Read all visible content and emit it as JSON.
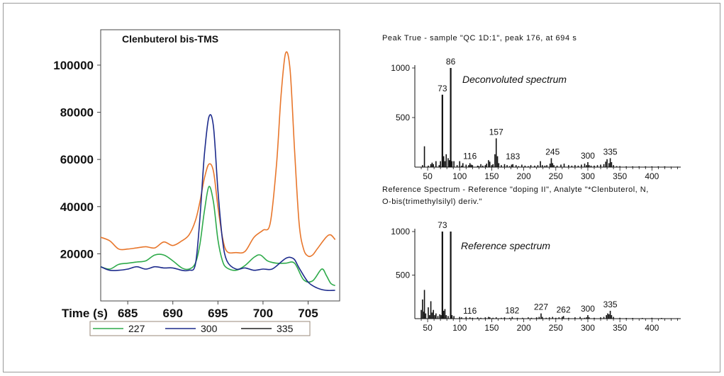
{
  "chart_data": [
    {
      "type": "line",
      "title": "Clenbuterol bis-TMS",
      "xlabel": "Time (s)",
      "ylabel": "",
      "xlim": [
        682,
        708.5
      ],
      "ylim": [
        0,
        115000
      ],
      "x_ticks": [
        685,
        690,
        695,
        700,
        705
      ],
      "y_ticks": [
        20000,
        40000,
        60000,
        80000,
        100000
      ],
      "x_tick_labels": [
        "685",
        "690",
        "695",
        "700",
        "705"
      ],
      "y_tick_labels": [
        "20000",
        "40000",
        "60000",
        "80000",
        "100000"
      ],
      "legend_position": "bottom",
      "series": [
        {
          "name": "227",
          "color": "#2eaa4a",
          "x": [
            682,
            683,
            684,
            685,
            686,
            687,
            688,
            689,
            690,
            691,
            691.8,
            692.5,
            693,
            693.5,
            694,
            694.5,
            695,
            695.5,
            696,
            697,
            698,
            699,
            699.7,
            700.5,
            701.5,
            702.5,
            703.5,
            704.5,
            705.5,
            706.5,
            707,
            707.5,
            708
          ],
          "y": [
            14500,
            13500,
            15500,
            16000,
            16500,
            17000,
            19500,
            19500,
            17000,
            14000,
            13500,
            16000,
            24000,
            38000,
            48500,
            42000,
            26000,
            17000,
            14000,
            13000,
            15000,
            18500,
            19500,
            17000,
            16000,
            16000,
            16000,
            9000,
            8500,
            13500,
            11000,
            7500,
            6500
          ]
        },
        {
          "name": "300",
          "color": "#1d2b8c",
          "x": [
            682,
            683,
            684,
            685,
            686,
            687,
            688,
            689,
            690,
            691,
            691.8,
            692.5,
            693,
            693.5,
            694,
            694.5,
            695,
            695.5,
            696,
            697,
            698,
            699,
            700,
            701,
            702,
            702.5,
            703,
            703.5,
            704,
            705,
            706,
            707,
            708
          ],
          "y": [
            14500,
            13000,
            13000,
            13500,
            14500,
            13500,
            14500,
            14000,
            14000,
            13000,
            13000,
            15500,
            35000,
            62000,
            78000,
            74000,
            47000,
            26000,
            17000,
            13500,
            14000,
            13000,
            13500,
            13500,
            16500,
            18000,
            18500,
            17500,
            14000,
            8000,
            5500,
            4500,
            4500
          ]
        },
        {
          "name": "335",
          "color": "#e8762b",
          "x": [
            682,
            683,
            684,
            685,
            686,
            687,
            688,
            689,
            690,
            691,
            691.8,
            692.5,
            693,
            693.5,
            694,
            694.5,
            695,
            695.5,
            696,
            697,
            698,
            699,
            700,
            700.8,
            701.5,
            702,
            702.5,
            703,
            703.5,
            704,
            704.5,
            705,
            705.5,
            706,
            707,
            707.5,
            708
          ],
          "y": [
            27000,
            25500,
            22000,
            22000,
            22500,
            23000,
            22500,
            25000,
            23500,
            25500,
            28000,
            34000,
            42000,
            52000,
            58000,
            55000,
            40000,
            27000,
            21000,
            20500,
            21000,
            27000,
            30000,
            33000,
            58000,
            87000,
            105000,
            98000,
            64000,
            33000,
            22000,
            19000,
            19500,
            22000,
            27000,
            28000,
            26000
          ]
        }
      ]
    },
    {
      "type": "bar",
      "title": "Deconvoluted spectrum",
      "caption": "Peak True - sample \"QC 1D:1\", peak 176, at 694 s",
      "xlim": [
        30,
        445
      ],
      "ylim": [
        0,
        1000
      ],
      "x_ticks": [
        50,
        100,
        150,
        200,
        250,
        300,
        350,
        400
      ],
      "x_tick_labels": [
        "50",
        "100",
        "150",
        "200",
        "250",
        "300",
        "350",
        "400"
      ],
      "y_ticks": [
        500,
        1000
      ],
      "y_tick_labels": [
        "500",
        "1000"
      ],
      "color": "#111111",
      "x": [
        42,
        45,
        51,
        55,
        57,
        59,
        63,
        68,
        70,
        73,
        75,
        77,
        79,
        82,
        84,
        86,
        88,
        91,
        96,
        100,
        103,
        105,
        110,
        114,
        116,
        118,
        120,
        128,
        130,
        133,
        136,
        140,
        142,
        145,
        147,
        150,
        152,
        155,
        157,
        159,
        161,
        165,
        170,
        174,
        178,
        181,
        183,
        188,
        192,
        197,
        202,
        207,
        211,
        217,
        222,
        226,
        229,
        233,
        236,
        241,
        243,
        245,
        247,
        252,
        258,
        263,
        270,
        275,
        280,
        285,
        290,
        295,
        298,
        300,
        302,
        305,
        310,
        315,
        320,
        325,
        328,
        330,
        333,
        335,
        337,
        340,
        345,
        350,
        360,
        370,
        380,
        390,
        400,
        410,
        420,
        430,
        440
      ],
      "y": [
        20,
        210,
        15,
        30,
        45,
        30,
        60,
        20,
        60,
        730,
        110,
        60,
        130,
        90,
        70,
        1000,
        60,
        60,
        20,
        60,
        15,
        40,
        25,
        20,
        40,
        25,
        20,
        15,
        10,
        30,
        15,
        20,
        35,
        70,
        55,
        20,
        30,
        130,
        290,
        110,
        40,
        20,
        30,
        20,
        10,
        25,
        30,
        20,
        10,
        25,
        15,
        10,
        20,
        15,
        20,
        60,
        20,
        15,
        20,
        35,
        90,
        40,
        20,
        15,
        25,
        35,
        20,
        15,
        20,
        15,
        25,
        35,
        20,
        50,
        20,
        15,
        15,
        20,
        25,
        30,
        55,
        80,
        40,
        90,
        50,
        20,
        10,
        10,
        8,
        8,
        8,
        8,
        8,
        8,
        8,
        5,
        5
      ],
      "peak_labels": [
        {
          "x": 73,
          "y": 730,
          "text": "73"
        },
        {
          "x": 86,
          "y": 1000,
          "text": "86"
        },
        {
          "x": 116,
          "y": 40,
          "text": "116"
        },
        {
          "x": 157,
          "y": 290,
          "text": "157"
        },
        {
          "x": 183,
          "y": 30,
          "text": "183"
        },
        {
          "x": 245,
          "y": 90,
          "text": "245"
        },
        {
          "x": 300,
          "y": 50,
          "text": "300"
        },
        {
          "x": 335,
          "y": 90,
          "text": "335"
        }
      ]
    },
    {
      "type": "bar",
      "title": "Reference spectrum",
      "caption_lines": [
        "Reference Spectrum - Reference \"doping II\", Analyte \"*Clenbuterol, N,",
        "O-bis(trimethylsilyl) deriv.\""
      ],
      "xlim": [
        30,
        445
      ],
      "ylim": [
        0,
        1000
      ],
      "x_ticks": [
        50,
        100,
        150,
        200,
        250,
        300,
        350,
        400
      ],
      "x_tick_labels": [
        "50",
        "100",
        "150",
        "200",
        "250",
        "300",
        "350",
        "400"
      ],
      "y_ticks": [
        500,
        1000
      ],
      "y_tick_labels": [
        "500",
        "1000"
      ],
      "color": "#111111",
      "x": [
        40,
        42,
        44,
        45,
        47,
        51,
        53,
        55,
        57,
        59,
        61,
        63,
        66,
        69,
        71,
        73,
        75,
        77,
        79,
        82,
        86,
        88,
        91,
        100,
        103,
        110,
        116,
        120,
        128,
        133,
        140,
        145,
        147,
        152,
        157,
        165,
        170,
        178,
        182,
        190,
        198,
        207,
        212,
        220,
        224,
        227,
        229,
        235,
        240,
        245,
        250,
        255,
        260,
        262,
        270,
        280,
        288,
        295,
        298,
        300,
        302,
        310,
        320,
        325,
        329,
        331,
        333,
        335,
        337,
        340,
        350,
        360,
        370,
        385,
        400,
        415,
        430,
        440
      ],
      "y": [
        100,
        220,
        80,
        330,
        60,
        130,
        40,
        200,
        70,
        100,
        40,
        60,
        30,
        50,
        40,
        1000,
        90,
        110,
        40,
        30,
        1000,
        40,
        30,
        20,
        15,
        20,
        15,
        10,
        15,
        10,
        15,
        20,
        15,
        10,
        15,
        10,
        15,
        10,
        20,
        10,
        10,
        15,
        10,
        15,
        20,
        60,
        20,
        10,
        15,
        20,
        10,
        15,
        20,
        30,
        10,
        15,
        20,
        10,
        15,
        40,
        15,
        10,
        15,
        20,
        40,
        60,
        50,
        90,
        40,
        20,
        10,
        8,
        8,
        8,
        10,
        8,
        5,
        5
      ],
      "peak_labels": [
        {
          "x": 73,
          "y": 1000,
          "text": "73"
        },
        {
          "x": 116,
          "y": 15,
          "text": "116"
        },
        {
          "x": 182,
          "y": 20,
          "text": "182"
        },
        {
          "x": 227,
          "y": 60,
          "text": "227"
        },
        {
          "x": 262,
          "y": 30,
          "text": "262"
        },
        {
          "x": 300,
          "y": 40,
          "text": "300"
        },
        {
          "x": 335,
          "y": 90,
          "text": "335"
        }
      ]
    }
  ]
}
